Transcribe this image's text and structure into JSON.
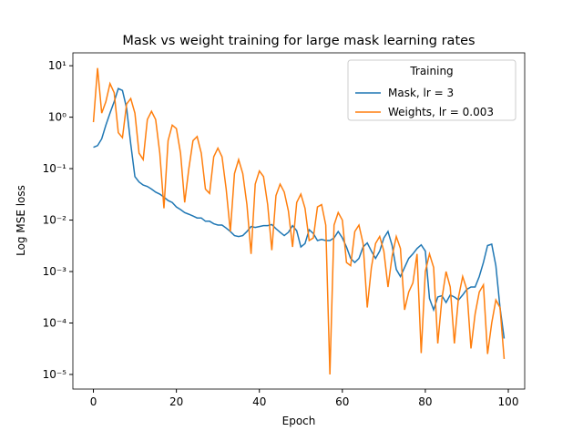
{
  "chart_data": {
    "type": "line",
    "title": "Mask vs weight training for large mask learning rates",
    "xlabel": "Epoch",
    "ylabel": "Log MSE loss",
    "log_y": true,
    "legend_title": "Training",
    "legend": "upper right",
    "x": [
      0,
      1,
      2,
      3,
      4,
      5,
      6,
      7,
      8,
      9,
      10,
      11,
      12,
      13,
      14,
      15,
      16,
      17,
      18,
      19,
      20,
      21,
      22,
      23,
      24,
      25,
      26,
      27,
      28,
      29,
      30,
      31,
      32,
      33,
      34,
      35,
      36,
      37,
      38,
      39,
      40,
      41,
      42,
      43,
      44,
      45,
      46,
      47,
      48,
      49,
      50,
      51,
      52,
      53,
      54,
      55,
      56,
      57,
      58,
      59,
      60,
      61,
      62,
      63,
      64,
      65,
      66,
      67,
      68,
      69,
      70,
      71,
      72,
      73,
      74,
      75,
      76,
      77,
      78,
      79,
      80,
      81,
      82,
      83,
      84,
      85,
      86,
      87,
      88,
      89,
      90,
      91,
      92,
      93,
      94,
      95,
      96,
      97,
      98,
      99
    ],
    "series": [
      {
        "name": "Mask, lr = 3",
        "color": "#1f77b4",
        "values": [
          0.26,
          0.28,
          0.38,
          0.7,
          1.2,
          2.0,
          3.6,
          3.3,
          1.5,
          0.3,
          0.07,
          0.055,
          0.048,
          0.045,
          0.04,
          0.035,
          0.032,
          0.028,
          0.024,
          0.022,
          0.018,
          0.016,
          0.014,
          0.013,
          0.012,
          0.011,
          0.011,
          0.0095,
          0.0095,
          0.0085,
          0.008,
          0.008,
          0.007,
          0.006,
          0.005,
          0.0048,
          0.005,
          0.006,
          0.0075,
          0.0072,
          0.0075,
          0.0078,
          0.0078,
          0.0082,
          0.0068,
          0.0058,
          0.005,
          0.0058,
          0.0078,
          0.0062,
          0.003,
          0.0035,
          0.0065,
          0.0055,
          0.004,
          0.0042,
          0.004,
          0.004,
          0.0045,
          0.006,
          0.0045,
          0.003,
          0.0018,
          0.0015,
          0.0018,
          0.003,
          0.0036,
          0.0025,
          0.0018,
          0.0025,
          0.0045,
          0.006,
          0.0032,
          0.0011,
          0.0008,
          0.0012,
          0.0018,
          0.0022,
          0.0028,
          0.0033,
          0.0025,
          0.0003,
          0.00018,
          0.00032,
          0.00034,
          0.00025,
          0.00035,
          0.00032,
          0.00028,
          0.00035,
          0.00045,
          0.0005,
          0.0005,
          0.0008,
          0.0015,
          0.0032,
          0.0034,
          0.0013,
          0.0002,
          5e-05
        ]
      },
      {
        "name": "Weights, lr = 0.003",
        "color": "#ff7f0e",
        "values": [
          0.8,
          9,
          1.2,
          2.0,
          4.5,
          3.0,
          0.5,
          0.4,
          1.8,
          2.3,
          1.2,
          0.2,
          0.15,
          0.9,
          1.3,
          0.9,
          0.2,
          0.017,
          0.35,
          0.7,
          0.6,
          0.2,
          0.022,
          0.1,
          0.35,
          0.42,
          0.2,
          0.04,
          0.033,
          0.17,
          0.25,
          0.17,
          0.04,
          0.006,
          0.08,
          0.15,
          0.08,
          0.02,
          0.0022,
          0.05,
          0.09,
          0.07,
          0.02,
          0.0026,
          0.03,
          0.05,
          0.035,
          0.015,
          0.003,
          0.022,
          0.032,
          0.017,
          0.004,
          0.0045,
          0.018,
          0.02,
          0.008,
          1e-05,
          0.008,
          0.014,
          0.01,
          0.0015,
          0.0013,
          0.006,
          0.008,
          0.0035,
          0.0002,
          0.0012,
          0.0035,
          0.0048,
          0.0025,
          0.0005,
          0.002,
          0.0048,
          0.0028,
          0.00018,
          0.0004,
          0.0006,
          0.0022,
          2.6e-05,
          0.001,
          0.0022,
          0.0012,
          4e-05,
          0.0003,
          0.001,
          0.0005,
          4e-05,
          0.00032,
          0.0008,
          0.00045,
          3.2e-05,
          0.00015,
          0.0004,
          0.00055,
          2.5e-05,
          0.0001,
          0.00028,
          0.0002,
          2e-05
        ]
      }
    ],
    "xlim": [
      -4.95,
      103.95
    ],
    "xticks": [
      0,
      20,
      40,
      60,
      80,
      100
    ],
    "ylim": [
      5.2e-06,
      17.8
    ],
    "yticks": [
      {
        "value": 1e-05,
        "label": "10⁻⁵"
      },
      {
        "value": 0.0001,
        "label": "10⁻⁴"
      },
      {
        "value": 0.001,
        "label": "10⁻³"
      },
      {
        "value": 0.01,
        "label": "10⁻²"
      },
      {
        "value": 0.1,
        "label": "10⁻¹"
      },
      {
        "value": 1,
        "label": "10⁰"
      },
      {
        "value": 10,
        "label": "10¹"
      }
    ]
  }
}
